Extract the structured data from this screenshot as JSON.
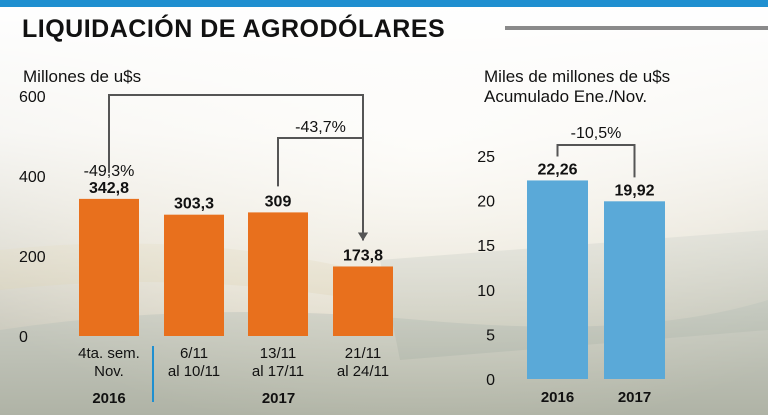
{
  "title": "LIQUIDACIÓN DE AGRODÓLARES",
  "colors": {
    "title_bar": "#1f8fd0",
    "left_bars": "#e8701d",
    "right_bars": "#5aa9d8",
    "divider": "#1f8fd0",
    "bracket": "#555555",
    "text": "#111111"
  },
  "chart_data": [
    {
      "type": "bar",
      "ylabel": "Millones de u$s",
      "ylim": [
        0,
        600
      ],
      "yticks": [
        "0",
        "200",
        "400",
        "600"
      ],
      "categories": [
        "4ta. sem.\nNov.",
        "6/11\nal 10/11",
        "13/11\nal 17/11",
        "21/11\nal 24/11"
      ],
      "values": [
        342.8,
        303.3,
        309,
        173.8
      ],
      "value_labels": [
        "342,8",
        "303,3",
        "309",
        "173,8"
      ],
      "groups": [
        {
          "label": "2016",
          "categories": [
            0
          ]
        },
        {
          "label": "2017",
          "categories": [
            1,
            2,
            3
          ]
        }
      ],
      "annotations": [
        {
          "label": "-49,3%",
          "from": 0,
          "to": 3
        },
        {
          "label": "-43,7%",
          "from": 2,
          "to": 3
        }
      ],
      "grid": false
    },
    {
      "type": "bar",
      "ylabel": "Miles de millones de u$s\nAcumulado Ene./Nov.",
      "ylim": [
        0,
        25
      ],
      "yticks": [
        "0",
        "5",
        "10",
        "15",
        "20",
        "25"
      ],
      "categories": [
        "2016",
        "2017"
      ],
      "values": [
        22.26,
        19.92
      ],
      "value_labels": [
        "22,26",
        "19,92"
      ],
      "annotations": [
        {
          "label": "-10,5%",
          "from": 0,
          "to": 1
        }
      ],
      "grid": false
    }
  ]
}
